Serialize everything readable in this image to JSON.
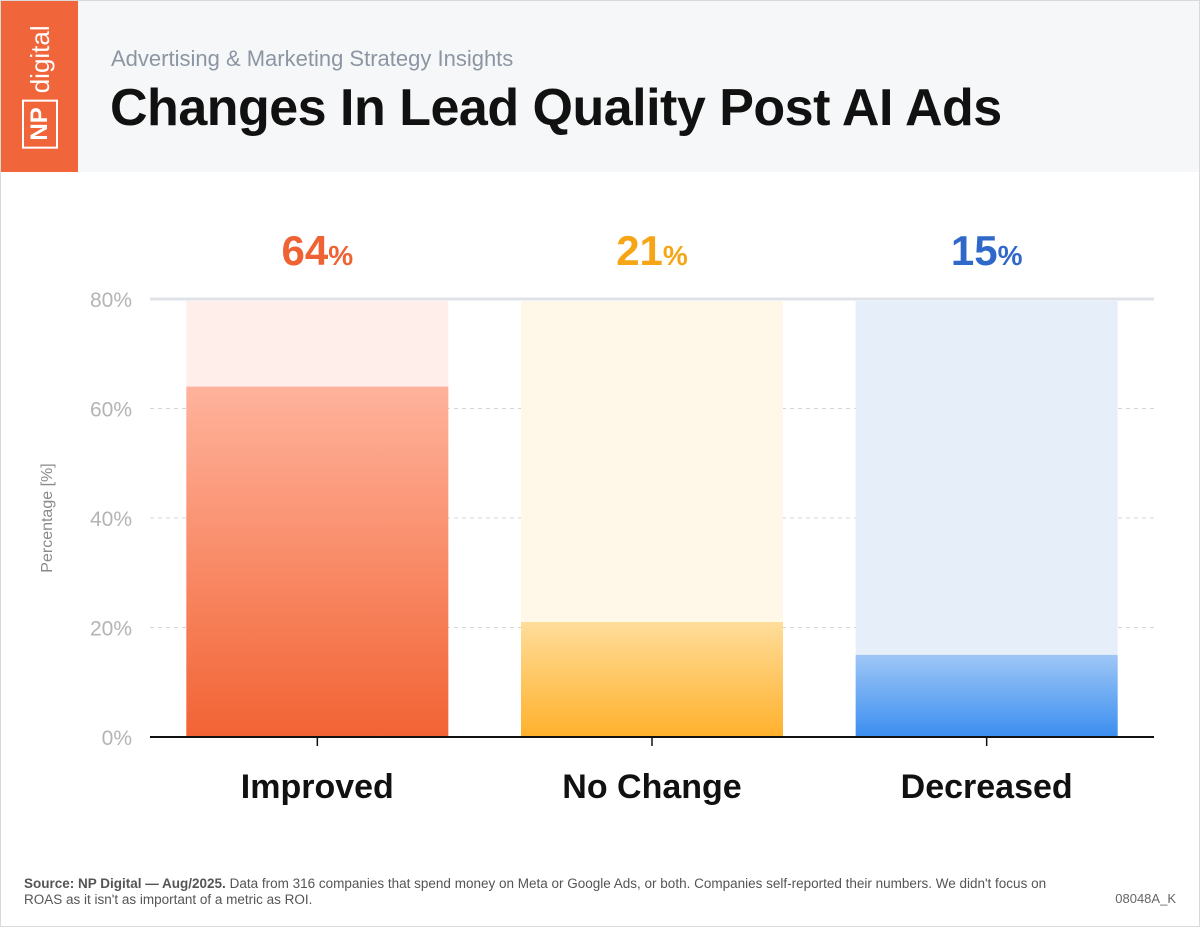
{
  "header": {
    "logo_np": "NP",
    "logo_digital": "digital",
    "subtitle": "Advertising & Marketing Strategy Insights",
    "title": "Changes In Lead Quality Post AI Ads"
  },
  "chart_data": {
    "type": "bar",
    "title": "Changes In Lead Quality Post AI Ads",
    "ylabel": "Percentage [%]",
    "ylim": [
      0,
      80
    ],
    "yticks": [
      "0%",
      "20%",
      "40%",
      "60%",
      "80%"
    ],
    "ytick_values": [
      0,
      20,
      40,
      60,
      80
    ],
    "grid": true,
    "categories": [
      "Improved",
      "No Change",
      "Decreased"
    ],
    "values": [
      64,
      21,
      15
    ],
    "value_labels": [
      "64",
      "21",
      "15"
    ],
    "percent_sign": "%",
    "colors": {
      "Improved": {
        "label": "#ee6234",
        "top": "#ffb39c",
        "bottom": "#f26334",
        "track": "#ffeeea"
      },
      "No Change": {
        "label": "#f5a516",
        "top": "#ffdd9a",
        "bottom": "#ffb12c",
        "track": "#fff7e8"
      },
      "Decreased": {
        "label": "#2f68c8",
        "top": "#9ec7f6",
        "bottom": "#3b8ef0",
        "track": "#e6eff9"
      }
    }
  },
  "footer": {
    "source_bold": "Source: NP Digital — Aug/2025.",
    "source_text": " Data from 316 companies that spend money on Meta or Google Ads, or both. Companies self-reported their numbers. We didn't focus on ROAS as it isn't as important of a metric as ROI.",
    "code": "08048A_K"
  }
}
